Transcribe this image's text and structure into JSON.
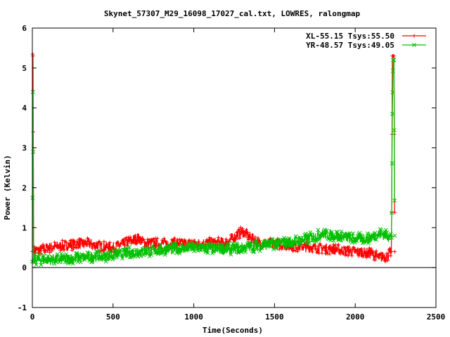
{
  "chart_data": {
    "type": "scatter",
    "title": "Skynet_57307_M29_16098_17027_cal.txt, LOWRES, ralongmap",
    "xlabel": "Time(Seconds)",
    "ylabel": "Power (Kelvin)",
    "xlim": [
      0,
      2500
    ],
    "ylim": [
      -1,
      6
    ],
    "xticks": [
      "0",
      "500",
      "1000",
      "1500",
      "2000",
      "2500"
    ],
    "yticks": [
      "-1",
      "0",
      "1",
      "2",
      "3",
      "4",
      "5",
      "6"
    ],
    "legend_position": "top-right",
    "grid": false,
    "series": [
      {
        "name": "XL-55.15 Tsys:55.50",
        "color": "#ff0000",
        "marker": "plus",
        "points": [
          [
            0,
            0.4
          ],
          [
            2,
            5.35
          ],
          [
            4,
            5.3
          ],
          [
            6,
            3.4
          ],
          [
            8,
            0.4
          ],
          [
            100,
            0.5
          ],
          [
            200,
            0.55
          ],
          [
            300,
            0.6
          ],
          [
            350,
            0.6
          ],
          [
            400,
            0.55
          ],
          [
            500,
            0.5
          ],
          [
            600,
            0.65
          ],
          [
            650,
            0.75
          ],
          [
            700,
            0.62
          ],
          [
            800,
            0.6
          ],
          [
            900,
            0.6
          ],
          [
            1000,
            0.6
          ],
          [
            1100,
            0.62
          ],
          [
            1200,
            0.62
          ],
          [
            1300,
            0.9
          ],
          [
            1400,
            0.62
          ],
          [
            1500,
            0.6
          ],
          [
            1600,
            0.55
          ],
          [
            1700,
            0.52
          ],
          [
            1800,
            0.48
          ],
          [
            1900,
            0.45
          ],
          [
            2000,
            0.4
          ],
          [
            2100,
            0.35
          ],
          [
            2150,
            0.25
          ],
          [
            2200,
            0.3
          ],
          [
            2225,
            0.4
          ],
          [
            2230,
            5.3
          ],
          [
            2240,
            5.3
          ],
          [
            2245,
            0.4
          ]
        ]
      },
      {
        "name": "YR-48.57 Tsys:49.05",
        "color": "#00c000",
        "marker": "cross",
        "points": [
          [
            0,
            0.15
          ],
          [
            2,
            1.75
          ],
          [
            4,
            4.4
          ],
          [
            6,
            2.9
          ],
          [
            8,
            0.2
          ],
          [
            100,
            0.2
          ],
          [
            200,
            0.22
          ],
          [
            300,
            0.25
          ],
          [
            400,
            0.28
          ],
          [
            500,
            0.3
          ],
          [
            600,
            0.38
          ],
          [
            700,
            0.4
          ],
          [
            800,
            0.45
          ],
          [
            900,
            0.48
          ],
          [
            1000,
            0.5
          ],
          [
            1100,
            0.48
          ],
          [
            1200,
            0.45
          ],
          [
            1300,
            0.5
          ],
          [
            1400,
            0.55
          ],
          [
            1500,
            0.6
          ],
          [
            1600,
            0.65
          ],
          [
            1700,
            0.72
          ],
          [
            1800,
            0.85
          ],
          [
            1900,
            0.78
          ],
          [
            2000,
            0.72
          ],
          [
            2100,
            0.75
          ],
          [
            2150,
            0.85
          ],
          [
            2200,
            0.8
          ],
          [
            2225,
            0.75
          ],
          [
            2230,
            3.85
          ],
          [
            2235,
            5.2
          ],
          [
            2240,
            5.2
          ],
          [
            2245,
            0.8
          ]
        ]
      }
    ]
  }
}
